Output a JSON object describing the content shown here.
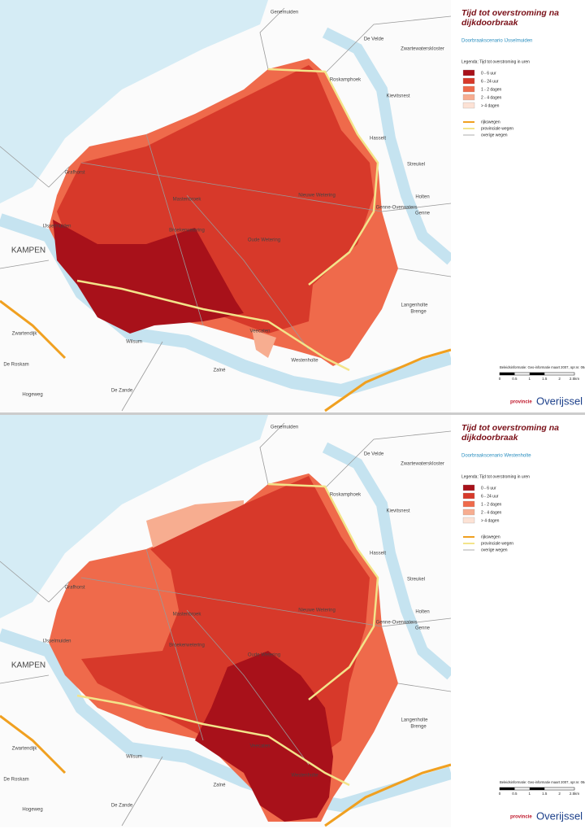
{
  "map_labels": [
    "Genemuiden",
    "De Velde",
    "Zwartewaterskloster",
    "Roskamphoek",
    "Kievitsnest",
    "Hasselt",
    "Streukel",
    "Holten",
    "Genne",
    "Genne-Overwaters",
    "Mastenbroek",
    "Nieuwe Wetering",
    "Broekerwetering",
    "Oude Wetering",
    "IJsselmuiden",
    "KAMPEN",
    "Grafhorst",
    "Zwartendijk",
    "De Roskam",
    "Wilsum",
    "Langenholte",
    "Brenge",
    "Zalné",
    "Westenholte",
    "Veecaten",
    "Hogeweg",
    "De Zande"
  ],
  "legend": {
    "title": "Legenda: Tijd tot overstroming in uren",
    "classes": [
      {
        "label": "0 - 6 uur",
        "color": "#a8111a"
      },
      {
        "label": "6 - 24 uur",
        "color": "#d7392a"
      },
      {
        "label": "1 - 2 dagen",
        "color": "#ef6a4b"
      },
      {
        "label": "2 - 4 dagen",
        "color": "#f7ad90"
      },
      {
        "label": "> 4 dagen",
        "color": "#fce2d5"
      }
    ],
    "roads": [
      {
        "label": "rijkswegen",
        "color": "#f0a020"
      },
      {
        "label": "provinciale wegen",
        "color": "#f3e48a"
      },
      {
        "label": "overige wegen",
        "color": "#9a9a9a"
      }
    ]
  },
  "scale": [
    "0",
    "0.5",
    "1",
    "1.5",
    "2",
    "2.5km"
  ],
  "logo": {
    "prefix": "provincie",
    "name": "Overijssel"
  },
  "panels": [
    {
      "title": "Tijd tot overstroming na dijkdoorbraak",
      "scenario": "Doorbraakscenario IJsselmuiden",
      "source": "Beleidsinformatie: Geo-informatie maart 2007, opr.nr. 06474159.6"
    },
    {
      "title": "Tijd tot overstroming na dijkdoorbraak",
      "scenario": "Doorbraakscenario Westenholte",
      "source": "Beleidsinformatie: Geo-informatie maart 2007, opr.nr. 06474159.4"
    }
  ]
}
